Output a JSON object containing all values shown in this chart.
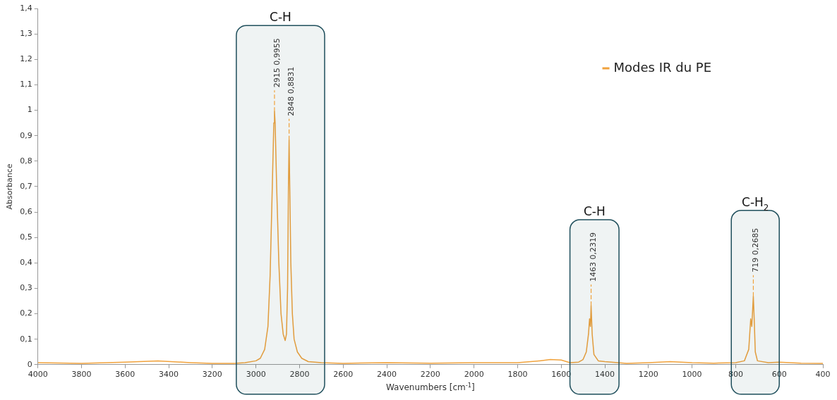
{
  "chart_data": {
    "type": "line",
    "xlabel": "Wavenumbers [cm$^{-1}$]",
    "ylabel": "Absorbance",
    "xlim": [
      4000,
      400
    ],
    "xticks": [
      4000,
      3800,
      3600,
      3400,
      3200,
      3000,
      2800,
      2600,
      2400,
      2200,
      2000,
      1800,
      1600,
      1400,
      1200,
      1000,
      800,
      600,
      400
    ],
    "ylim": [
      0,
      1.4
    ],
    "yticks": [
      {
        "value": 0,
        "label": "0"
      },
      {
        "value": 0.1,
        "label": "0,1"
      },
      {
        "value": 0.2,
        "label": "0,2"
      },
      {
        "value": 0.3,
        "label": "0,3"
      },
      {
        "value": 0.4,
        "label": "0,4"
      },
      {
        "value": 0.5,
        "label": "0,5"
      },
      {
        "value": 0.6,
        "label": "0,6"
      },
      {
        "value": 0.7,
        "label": "0,7"
      },
      {
        "value": 0.8,
        "label": "0,8"
      },
      {
        "value": 0.9,
        "label": "0,9"
      },
      {
        "value": 1,
        "label": "1"
      },
      {
        "value": 1.1,
        "label": "1,1"
      },
      {
        "value": 1.2,
        "label": "1,2"
      },
      {
        "value": 1.3,
        "label": "1,3"
      },
      {
        "value": 1.4,
        "label": "1,4"
      }
    ],
    "grid": false,
    "legend": "top right",
    "marker": "none",
    "line_style": "solid",
    "series": [
      {
        "name": "Modes IR du PE",
        "color": "#f0a23c",
        "x": [
          4000,
          3800,
          3600,
          3450,
          3300,
          3200,
          3100,
          3050,
          3000,
          2980,
          2960,
          2945,
          2935,
          2925,
          2918,
          2915,
          2912,
          2905,
          2895,
          2885,
          2875,
          2866,
          2860,
          2855,
          2851,
          2848,
          2845,
          2840,
          2833,
          2825,
          2810,
          2790,
          2760,
          2700,
          2600,
          2400,
          2200,
          2000,
          1800,
          1700,
          1650,
          1600,
          1560,
          1520,
          1500,
          1485,
          1475,
          1470,
          1466,
          1463,
          1458,
          1450,
          1430,
          1400,
          1370,
          1300,
          1200,
          1100,
          1000,
          900,
          800,
          760,
          740,
          731,
          726,
          719,
          715,
          710,
          700,
          650,
          600,
          500,
          400
        ],
        "values": [
          0.008,
          0.005,
          0.01,
          0.015,
          0.008,
          0.005,
          0.005,
          0.008,
          0.015,
          0.025,
          0.06,
          0.15,
          0.35,
          0.7,
          0.95,
          0.9955,
          0.95,
          0.7,
          0.4,
          0.2,
          0.12,
          0.095,
          0.12,
          0.3,
          0.7,
          0.8831,
          0.7,
          0.4,
          0.2,
          0.1,
          0.05,
          0.025,
          0.012,
          0.008,
          0.005,
          0.008,
          0.006,
          0.008,
          0.008,
          0.015,
          0.02,
          0.018,
          0.008,
          0.01,
          0.02,
          0.05,
          0.12,
          0.18,
          0.15,
          0.2319,
          0.12,
          0.04,
          0.015,
          0.012,
          0.01,
          0.005,
          0.008,
          0.012,
          0.008,
          0.006,
          0.008,
          0.015,
          0.06,
          0.18,
          0.15,
          0.2685,
          0.18,
          0.05,
          0.015,
          0.008,
          0.01,
          0.006,
          0.005
        ]
      }
    ],
    "annotations": [
      {
        "text": "2915 0,9955",
        "x": 2915,
        "y": 0.9955
      },
      {
        "text": "2848 0,8831",
        "x": 2848,
        "y": 0.8831
      },
      {
        "text": "1463 0,2319",
        "x": 1463,
        "y": 0.2319
      },
      {
        "text": "719 0,2685",
        "x": 719,
        "y": 0.2685
      }
    ],
    "bands": [
      {
        "axis": "x",
        "from": 3090,
        "to": 2685,
        "label": "C-H",
        "color": "#1f4f5c"
      },
      {
        "axis": "x",
        "from": 1560,
        "to": 1335,
        "label": "C-H",
        "color": "#1f4f5c"
      },
      {
        "axis": "x",
        "from": 820,
        "to": 600,
        "label": "C-H$_{2}$",
        "color": "#1f4f5c"
      }
    ]
  }
}
